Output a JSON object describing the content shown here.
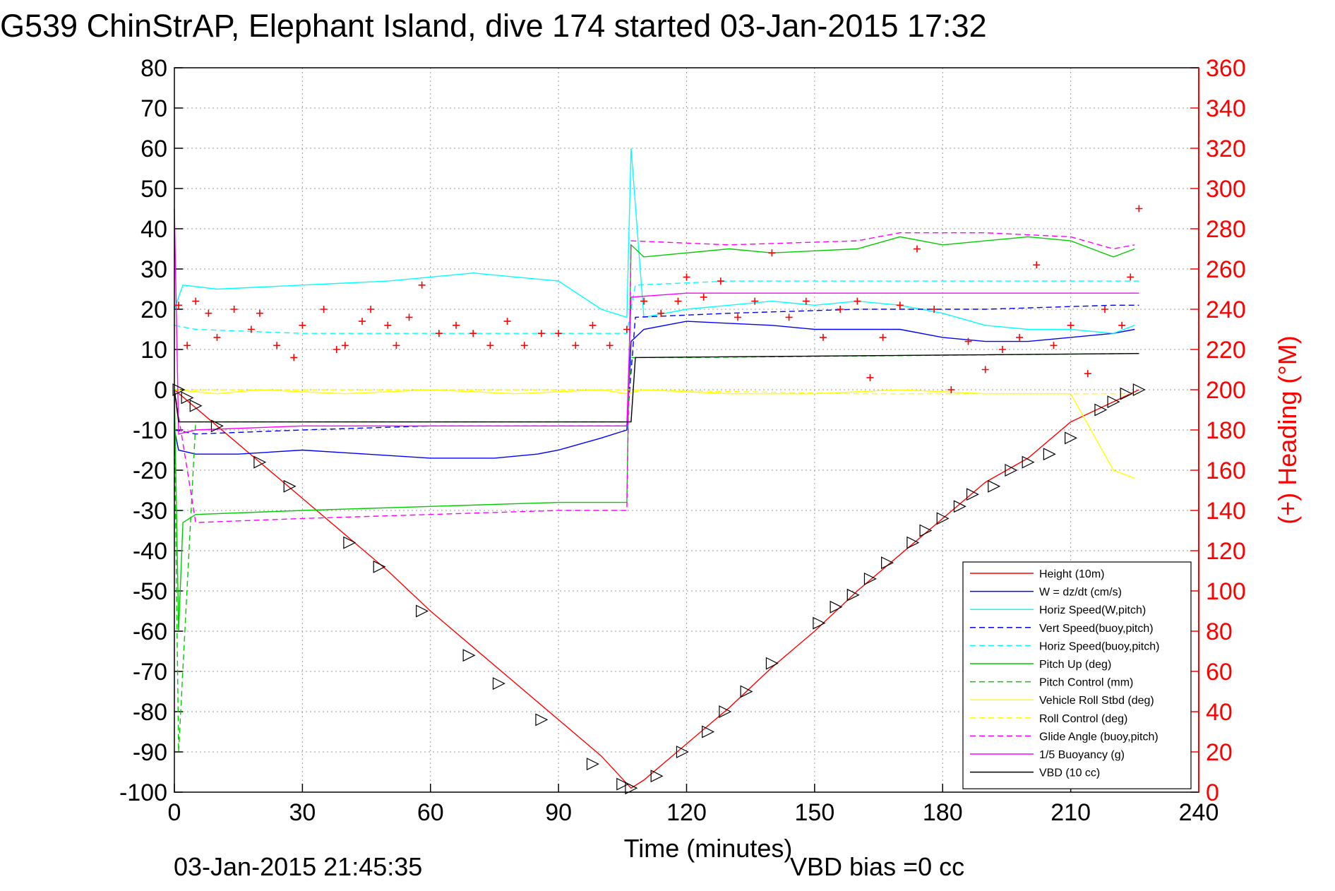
{
  "chart_data": {
    "type": "line",
    "title": "G539 ChinStrAP, Elephant Island, dive 174 started 03-Jan-2015 17:32",
    "xlabel": "Time (minutes)",
    "ylabel": "",
    "ylabel_right": "(+) Heading (°M)",
    "xlim": [
      0,
      240
    ],
    "ylim": [
      -100,
      80
    ],
    "ylim_right": [
      0,
      360
    ],
    "xticks": [
      0,
      30,
      60,
      90,
      120,
      150,
      180,
      210,
      240
    ],
    "yticks": [
      80,
      70,
      60,
      50,
      40,
      30,
      20,
      10,
      0,
      -10,
      -20,
      -30,
      -40,
      -50,
      -60,
      -70,
      -80,
      -90,
      -100
    ],
    "yticks_right": [
      360,
      340,
      320,
      300,
      280,
      260,
      240,
      220,
      200,
      180,
      160,
      140,
      120,
      100,
      80,
      60,
      40,
      20,
      0
    ],
    "grid": true,
    "legend_position": "bottom-right",
    "footer_timestamp": "03-Jan-2015 21:45:35",
    "footer_note": "VBD bias =0 cc",
    "colors": {
      "right_axis": "#ff0000",
      "grid": "#9a9a9a"
    },
    "series": [
      {
        "name": "Height (10m)",
        "color": "#ff0000",
        "dash": "solid",
        "x": [
          0,
          10,
          20,
          30,
          40,
          50,
          60,
          70,
          80,
          90,
          100,
          107,
          110,
          120,
          130,
          140,
          150,
          160,
          170,
          180,
          190,
          200,
          210,
          220,
          226
        ],
        "y": [
          0,
          -9,
          -18,
          -27,
          -36,
          -45,
          -55,
          -64,
          -73,
          -82,
          -91,
          -99,
          -97,
          -88,
          -79,
          -69,
          -60,
          -50,
          -41,
          -32,
          -23,
          -17,
          -8,
          -3,
          0
        ]
      },
      {
        "name": "W = dz/dt (cm/s)",
        "color": "#0000ff",
        "dash": "solid",
        "x": [
          0,
          1,
          5,
          15,
          30,
          45,
          60,
          75,
          85,
          90,
          100,
          106,
          107,
          110,
          120,
          140,
          150,
          160,
          170,
          180,
          190,
          200,
          210,
          220,
          225
        ],
        "y": [
          -10,
          -15,
          -16,
          -16,
          -15,
          -16,
          -17,
          -17,
          -16,
          -15,
          -12,
          -10,
          12,
          15,
          17,
          16,
          15,
          15,
          15,
          13,
          12,
          12,
          13,
          14,
          15
        ]
      },
      {
        "name": "Horiz Speed(W,pitch)",
        "color": "#00ffff",
        "dash": "solid",
        "x": [
          0,
          2,
          10,
          30,
          50,
          60,
          70,
          80,
          90,
          100,
          106,
          107,
          110,
          120,
          140,
          150,
          160,
          170,
          180,
          190,
          200,
          210,
          220,
          225
        ],
        "y": [
          20,
          26,
          25,
          26,
          27,
          28,
          29,
          28,
          27,
          20,
          18,
          60,
          18,
          20,
          22,
          21,
          22,
          21,
          19,
          16,
          15,
          15,
          14,
          16
        ]
      },
      {
        "name": "Vert Speed(buoy,pitch)",
        "color": "#0000ff",
        "dash": "dashed",
        "x": [
          0,
          5,
          30,
          60,
          90,
          106,
          108,
          130,
          160,
          190,
          220,
          226
        ],
        "y": [
          -10,
          -11,
          -10,
          -9,
          -9,
          -9,
          18,
          19,
          20,
          20,
          21,
          21
        ]
      },
      {
        "name": "Horiz Speed(buoy,pitch)",
        "color": "#00ffff",
        "dash": "dashed",
        "x": [
          0,
          5,
          30,
          60,
          90,
          106,
          108,
          130,
          160,
          190,
          220,
          226
        ],
        "y": [
          16,
          15,
          14,
          14,
          14,
          14,
          26,
          27,
          27,
          27,
          27,
          27
        ]
      },
      {
        "name": "Pitch Up (deg)",
        "color": "#00cc00",
        "dash": "solid",
        "x": [
          0,
          1,
          2,
          5,
          30,
          60,
          90,
          106,
          107,
          110,
          130,
          140,
          160,
          170,
          180,
          190,
          200,
          210,
          220,
          225
        ],
        "y": [
          0,
          -60,
          -33,
          -31,
          -30,
          -29,
          -28,
          -28,
          36,
          33,
          35,
          34,
          35,
          38,
          36,
          37,
          38,
          37,
          33,
          35
        ]
      },
      {
        "name": "Pitch Control (mm)",
        "color": "#00cc00",
        "dash": "dashed",
        "x": [
          0,
          1,
          5,
          106,
          107,
          120,
          226
        ],
        "y": [
          -8,
          -90,
          -8,
          -8,
          8,
          8,
          9
        ]
      },
      {
        "name": "Vehicle Roll Stbd (deg)",
        "color": "#ffff00",
        "dash": "solid",
        "x": [
          0,
          10,
          20,
          40,
          60,
          80,
          100,
          106,
          110,
          130,
          150,
          170,
          190,
          210,
          220,
          225
        ],
        "y": [
          0,
          -1,
          0,
          -1,
          0,
          -1,
          0,
          -1,
          0,
          -1,
          -1,
          0,
          -1,
          -1,
          -20,
          -22
        ]
      },
      {
        "name": "Roll Control (deg)",
        "color": "#ffff00",
        "dash": "dashed",
        "x": [
          0,
          60,
          107,
          160,
          226
        ],
        "y": [
          0,
          0,
          0,
          -1,
          -1
        ]
      },
      {
        "name": "Glide Angle (buoy,pitch)",
        "color": "#ff00ff",
        "dash": "dashed",
        "x": [
          0,
          5,
          30,
          60,
          90,
          106,
          107,
          130,
          160,
          170,
          190,
          210,
          220,
          225
        ],
        "y": [
          0,
          -33,
          -32,
          -31,
          -30,
          -30,
          37,
          36,
          37,
          39,
          39,
          38,
          35,
          36
        ]
      },
      {
        "name": "1/5 Buoyancy (g)",
        "color": "#ff00ff",
        "dash": "solid",
        "x": [
          0,
          1,
          5,
          30,
          60,
          106,
          107,
          120,
          160,
          200,
          226
        ],
        "y": [
          45,
          -11,
          -10,
          -9,
          -9,
          -9,
          23,
          24,
          24,
          24,
          24
        ]
      },
      {
        "name": "VBD (10 cc)",
        "color": "#000000",
        "dash": "solid",
        "x": [
          0,
          1,
          2,
          106,
          107,
          108,
          226
        ],
        "y": [
          0,
          -8,
          -8,
          -8,
          -8,
          8,
          9
        ]
      }
    ],
    "heading_points": {
      "name": "(+) Heading",
      "axis": "right",
      "color": "#ff0000",
      "marker": "+",
      "x": [
        1,
        3,
        5,
        8,
        10,
        14,
        18,
        20,
        24,
        28,
        30,
        35,
        38,
        40,
        44,
        46,
        50,
        52,
        55,
        58,
        62,
        66,
        70,
        74,
        78,
        82,
        86,
        90,
        94,
        98,
        102,
        106,
        110,
        114,
        118,
        120,
        124,
        128,
        132,
        136,
        140,
        144,
        148,
        152,
        156,
        160,
        163,
        166,
        170,
        174,
        178,
        182,
        186,
        190,
        194,
        198,
        202,
        206,
        210,
        214,
        218,
        222,
        224,
        226
      ],
      "y": [
        242,
        222,
        244,
        238,
        226,
        240,
        230,
        238,
        222,
        216,
        232,
        240,
        220,
        222,
        234,
        240,
        232,
        222,
        236,
        252,
        228,
        232,
        228,
        222,
        234,
        222,
        228,
        228,
        222,
        232,
        222,
        230,
        244,
        238,
        244,
        256,
        246,
        254,
        236,
        244,
        268,
        236,
        244,
        226,
        240,
        244,
        206,
        226,
        242,
        270,
        240,
        200,
        224,
        210,
        220,
        226,
        262,
        222,
        232,
        208,
        240,
        232,
        256,
        290
      ]
    },
    "descent_markers": {
      "name": "Height markers",
      "x": [
        1,
        3,
        5,
        10,
        20,
        27,
        41,
        48,
        58,
        69,
        76,
        86,
        98,
        105,
        107,
        113,
        119,
        125,
        129,
        134,
        140,
        151,
        155,
        159,
        163,
        167,
        173,
        176,
        180,
        184,
        187,
        192,
        196,
        200,
        205,
        210,
        217,
        220,
        223,
        226
      ],
      "y": [
        0,
        -2,
        -4,
        -9,
        -18,
        -24,
        -38,
        -44,
        -55,
        -66,
        -73,
        -82,
        -93,
        -98,
        -99,
        -96,
        -90,
        -85,
        -80,
        -75,
        -68,
        -58,
        -54,
        -51,
        -47,
        -43,
        -38,
        -35,
        -32,
        -29,
        -26,
        -24,
        -20,
        -18,
        -16,
        -12,
        -5,
        -3,
        -1,
        0
      ]
    }
  }
}
